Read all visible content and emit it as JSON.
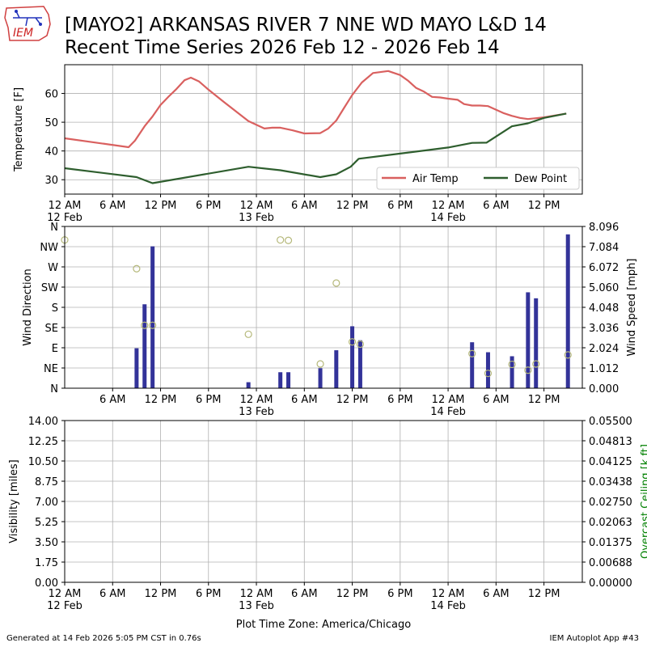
{
  "header": {
    "title_line1": "[MAYO2] ARKANSAS RIVER 7 NNE WD MAYO L&D 14",
    "title_line2": "Recent Time Series 2026 Feb 12 - 2026 Feb 14",
    "logo_text": "IEM"
  },
  "footer": {
    "generated": "Generated at 14 Feb 2026 5:05 PM CST in 0.76s",
    "app": "IEM Autoplot App #43"
  },
  "colors": {
    "air_temp": "#d9605f",
    "dew_point": "#2e5e2e",
    "wind_speed_bar": "#333399",
    "wind_dir_marker": "#b5b87a",
    "grid": "#b0b0b0",
    "ceiling_label": "#008000"
  },
  "chart_data": [
    {
      "type": "line",
      "ylabel": "Temperature [F]",
      "ylim": [
        25,
        70
      ],
      "yticks": [
        30,
        40,
        50,
        60
      ],
      "xlim": [
        0,
        64.8
      ],
      "x_unit": "hours since 12 Feb 2026 12 AM CST",
      "xticks": [
        0,
        6,
        12,
        18,
        24,
        30,
        36,
        42,
        48,
        54,
        60,
        66
      ],
      "xticklabels": [
        "12 AM\n12 Feb",
        "6 AM",
        "12 PM",
        "6 PM",
        "12 AM\n13 Feb",
        "6 AM",
        "12 PM",
        "6 PM",
        "12 AM\n14 Feb",
        "6 AM",
        "12 PM"
      ],
      "grid": true,
      "legend": "bottom-right",
      "series": [
        {
          "name": "Air Temp",
          "x": [
            0,
            8,
            8.8,
            10,
            11,
            12,
            13,
            14,
            15,
            15.8,
            16.8,
            18,
            20,
            23,
            25,
            26,
            27,
            28.5,
            30,
            32,
            33,
            34,
            35,
            36,
            37.2,
            38.6,
            40.5,
            42,
            43,
            44,
            45,
            46,
            47,
            48,
            49.2,
            50,
            51,
            52,
            53,
            55,
            56,
            57,
            58,
            60,
            62.8
          ],
          "y": [
            44.4,
            41.3,
            43.6,
            48.6,
            52,
            56,
            58.9,
            61.6,
            64.6,
            65.5,
            64.2,
            61.3,
            56.9,
            50.4,
            47.8,
            48.1,
            48.1,
            47.2,
            46.1,
            46.2,
            47.8,
            50.6,
            55.1,
            59.5,
            63.8,
            67.1,
            67.8,
            66.4,
            64.4,
            61.9,
            60.6,
            58.8,
            58.6,
            58.2,
            57.8,
            56.3,
            55.8,
            55.8,
            55.6,
            53.1,
            52.2,
            51.5,
            51.1,
            51.7,
            53.0
          ]
        },
        {
          "name": "Dew Point",
          "x": [
            0,
            9,
            11,
            23,
            27,
            32,
            34,
            35.8,
            36.8,
            42,
            48,
            51,
            52.8,
            56,
            58,
            60,
            62.8
          ],
          "y": [
            34.0,
            30.9,
            28.8,
            34.5,
            33.3,
            30.9,
            31.9,
            34.5,
            37.3,
            39.1,
            41.2,
            42.8,
            42.9,
            48.6,
            49.6,
            51.5,
            53.0
          ]
        }
      ]
    },
    {
      "type": "bar",
      "ylabel": "Wind Direction",
      "y2label": "Wind Speed [mph]",
      "xlim": [
        0,
        64.8
      ],
      "dir_ticks": [
        "N",
        "NE",
        "E",
        "SE",
        "S",
        "SW",
        "W",
        "NW",
        "N"
      ],
      "speed_ylim": [
        0,
        8.096
      ],
      "speed_ticks": [
        "0.000",
        "1.012",
        "2.024",
        "3.036",
        "4.048",
        "5.060",
        "6.072",
        "7.084",
        "8.096"
      ],
      "xticklabels": [
        "6 AM",
        "12 PM",
        "6 PM",
        "12 AM\n13 Feb",
        "6 AM",
        "12 PM",
        "6 PM",
        "12 AM\n14 Feb",
        "6 AM",
        "12 PM"
      ],
      "grid": true,
      "wind_speed": {
        "x": [
          9,
          10,
          11,
          23,
          27,
          28,
          32,
          34,
          36,
          37,
          51,
          53,
          56,
          58,
          59,
          63
        ],
        "y": [
          2.0,
          4.2,
          7.1,
          0.3,
          0.8,
          0.8,
          1.0,
          1.9,
          3.1,
          2.4,
          2.3,
          1.8,
          1.6,
          4.8,
          4.5,
          7.7
        ]
      },
      "wind_direction": {
        "x": [
          0,
          9,
          10,
          11,
          23,
          27,
          28,
          32,
          34,
          36,
          37,
          51,
          53,
          56,
          58,
          59,
          63
        ],
        "y": [
          330,
          266,
          140,
          140,
          120,
          330,
          329,
          54,
          234,
          103,
          98,
          77,
          33,
          53,
          40,
          54,
          74
        ]
      }
    },
    {
      "type": "line",
      "ylabel": "Visibility [miles]",
      "y2label": "Overcast Ceiling [k ft]",
      "ylim": [
        0,
        14
      ],
      "yticks": [
        "0.00",
        "1.75",
        "3.50",
        "5.25",
        "7.00",
        "8.75",
        "10.50",
        "12.25",
        "14.00"
      ],
      "y2lim": [
        0,
        0.055
      ],
      "y2ticks": [
        "0.00000",
        "0.00688",
        "0.01375",
        "0.02063",
        "0.02750",
        "0.03438",
        "0.04125",
        "0.04813",
        "0.05500"
      ],
      "xlabel": "Plot Time Zone: America/Chicago",
      "xticklabels": [
        "12 AM\n12 Feb",
        "6 AM",
        "12 PM",
        "6 PM",
        "12 AM\n13 Feb",
        "6 AM",
        "12 PM",
        "6 PM",
        "12 AM\n14 Feb",
        "6 AM",
        "12 PM"
      ],
      "grid": true,
      "series": []
    }
  ]
}
